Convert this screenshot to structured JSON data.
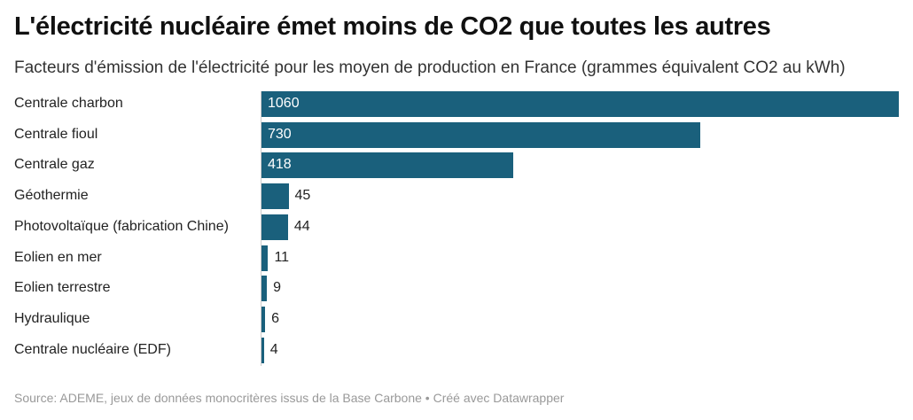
{
  "header": {
    "title": "L'électricité nucléaire émet moins de CO2 que toutes les autres",
    "subtitle": "Facteurs d'émission de l'électricité pour les moyen de production en France (grammes équivalent CO2 au kWh)"
  },
  "footer": {
    "source": "Source: ADEME, jeux de données monocritères issus de la Base Carbone • Créé avec Datawrapper"
  },
  "chart_data": {
    "type": "bar",
    "orientation": "horizontal",
    "categories": [
      "Centrale charbon",
      "Centrale fioul",
      "Centrale gaz",
      "Géothermie",
      "Photovoltaïque (fabrication Chine)",
      "Eolien en mer",
      "Eolien terrestre",
      "Hydraulique",
      "Centrale nucléaire (EDF)"
    ],
    "values": [
      1060,
      730,
      418,
      45,
      44,
      11,
      9,
      6,
      4
    ],
    "xlim": [
      0,
      1060
    ],
    "grid": false,
    "bar_color": "#1a607c"
  }
}
